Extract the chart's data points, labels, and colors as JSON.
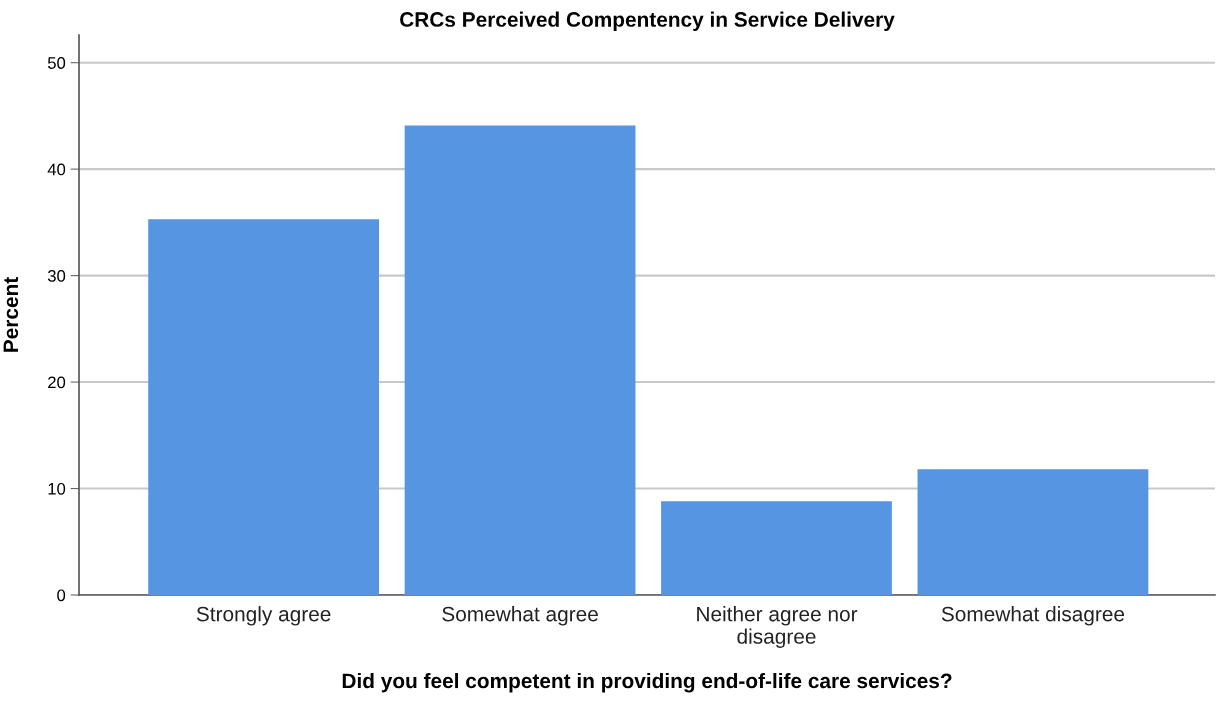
{
  "chart_data": {
    "type": "bar",
    "title": "CRCs Perceived Compentency in Service Delivery",
    "xlabel": "Did you feel competent in providing end-of-life care services?",
    "ylabel": "Percent",
    "categories": [
      "Strongly agree",
      "Somewhat agree",
      "Neither agree nor\ndisagree",
      "Somewhat disagree"
    ],
    "values": [
      35.3,
      44.1,
      8.8,
      11.8
    ],
    "color": "#5595e2",
    "ylim": [
      0,
      52.6
    ],
    "yticks": [
      0,
      10,
      20,
      30,
      40,
      50
    ],
    "grid": "y"
  }
}
